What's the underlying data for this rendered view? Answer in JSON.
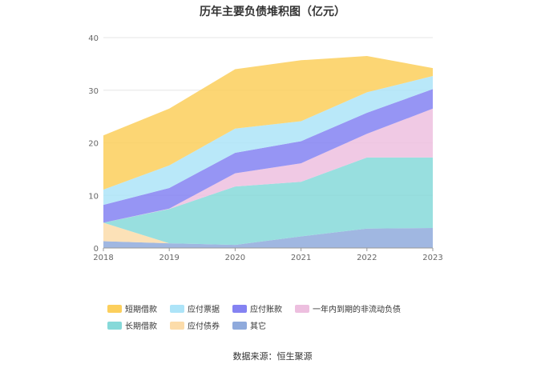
{
  "chart_data": {
    "type": "area",
    "stacked": true,
    "title": "历年主要负债堆积图（亿元）",
    "x": [
      "2018",
      "2019",
      "2020",
      "2021",
      "2022",
      "2023"
    ],
    "ylim": [
      0,
      40
    ],
    "yticks": [
      0,
      10,
      20,
      30,
      40
    ],
    "grid": true,
    "legend_position": "bottom",
    "series": [
      {
        "name": "其它",
        "color": "#8faadc",
        "values": [
          1.3,
          0.9,
          0.6,
          2.2,
          3.7,
          3.8
        ]
      },
      {
        "name": "应付债券",
        "color": "#fcdcaa",
        "values": [
          3.5,
          0.0,
          0.0,
          0.0,
          0.0,
          0.0
        ]
      },
      {
        "name": "长期借款",
        "color": "#86d9d9",
        "values": [
          0.0,
          6.5,
          11.1,
          10.4,
          13.5,
          13.4
        ]
      },
      {
        "name": "一年内到期的非流动负债",
        "color": "#edbfdf",
        "values": [
          0.0,
          0.1,
          2.5,
          3.5,
          4.5,
          9.3
        ]
      },
      {
        "name": "应付账款",
        "color": "#8482f2",
        "values": [
          3.4,
          3.9,
          3.9,
          4.2,
          4.0,
          3.7
        ]
      },
      {
        "name": "应付票据",
        "color": "#ade4f8",
        "values": [
          2.9,
          4.3,
          4.6,
          3.8,
          3.9,
          2.5
        ]
      },
      {
        "name": "短期借款",
        "color": "#fccf5c",
        "values": [
          10.3,
          10.8,
          11.3,
          11.6,
          6.9,
          1.5
        ]
      }
    ],
    "legend_order": [
      "短期借款",
      "应付票据",
      "应付账款",
      "一年内到期的非流动负债",
      "长期借款",
      "应付债券",
      "其它"
    ]
  },
  "source_text": "数据来源：恒生聚源"
}
